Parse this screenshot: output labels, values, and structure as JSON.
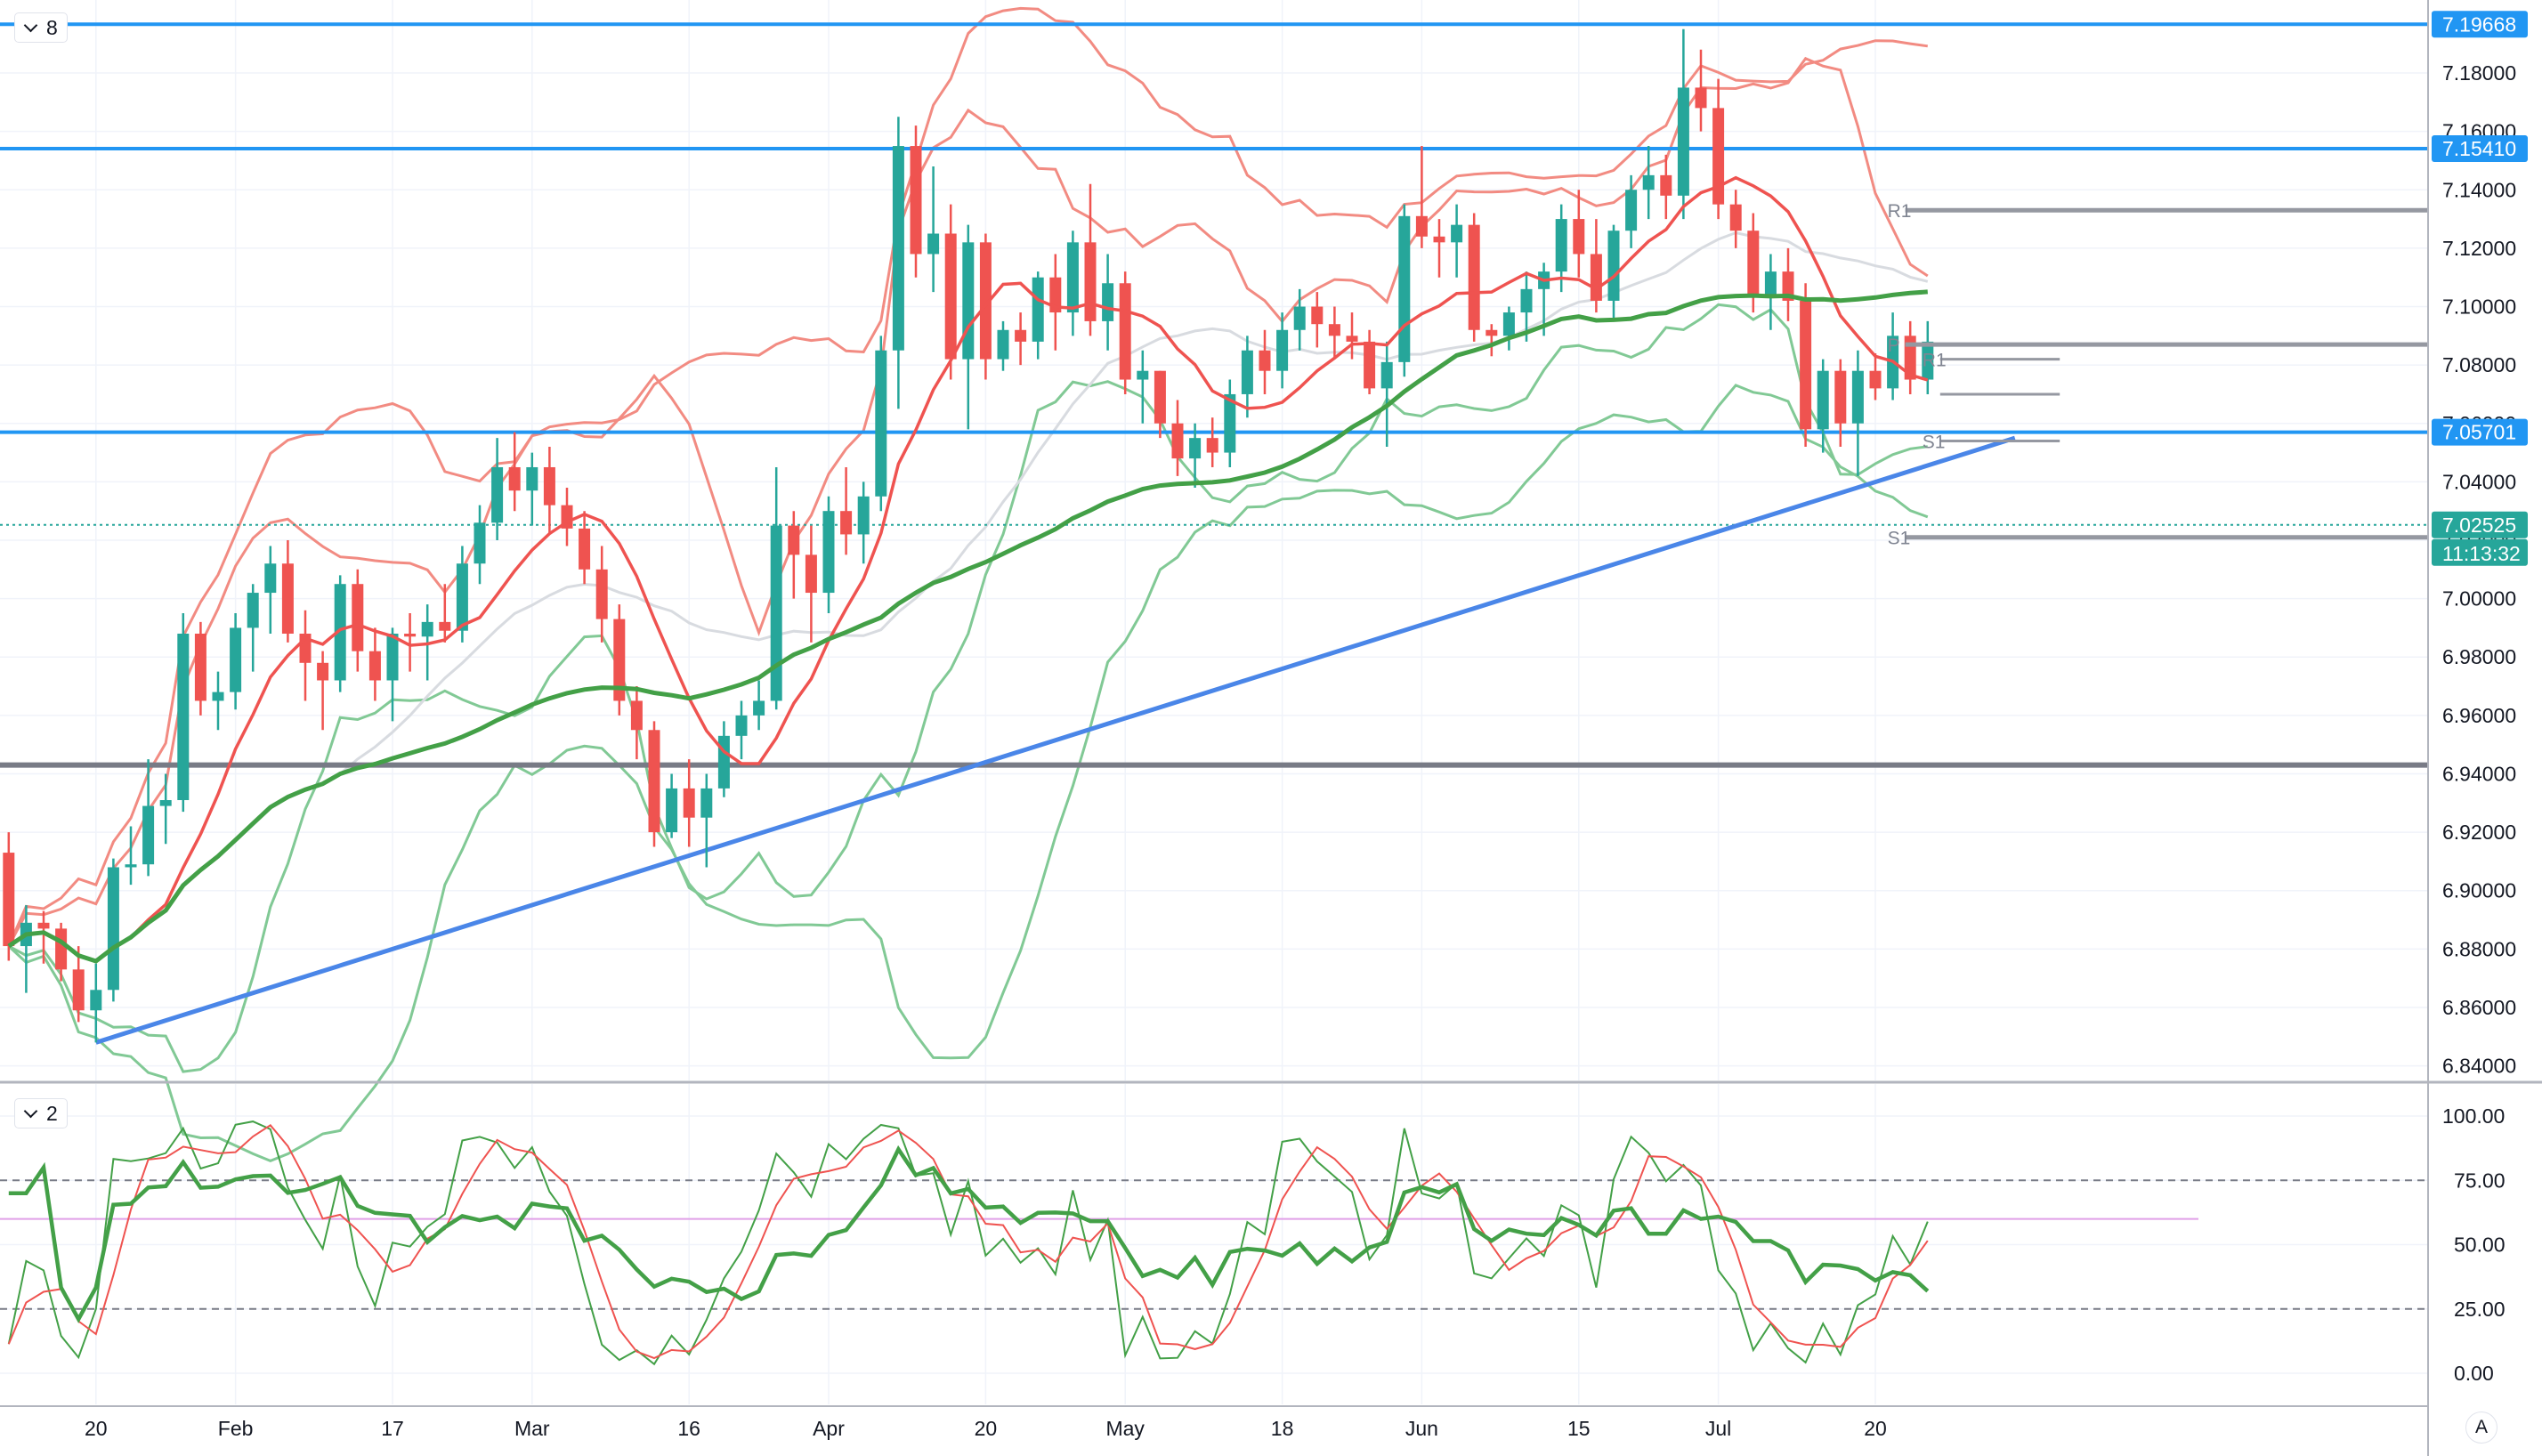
{
  "panes": {
    "main": {
      "indicator_count": "8"
    },
    "oscillator": {
      "indicator_count": "2"
    }
  },
  "auto_scale_label": "A",
  "colors": {
    "up": "#26a69a",
    "down": "#ef5350",
    "level_blue": "#2196f3",
    "trendline": "#4a86e8",
    "support_gray": "#787b86",
    "pivot_gray": "#9598a1",
    "bb_red": "#f28b82",
    "bb_green": "#81c995",
    "ma_red": "#ef5350",
    "ma_green": "#43a047",
    "ma_gray": "#d8dbe0",
    "osc_green": "#43a047",
    "osc_red": "#ef5350",
    "magenta": "#e0a0e8",
    "grid": "#f0f3fa"
  },
  "chart_data": {
    "type": "candlestick",
    "price_axis": {
      "range": [
        6.835,
        7.205
      ],
      "ticks": [
        "7.18000",
        "7.16000",
        "7.14000",
        "7.12000",
        "7.10000",
        "7.08000",
        "7.06000",
        "7.04000",
        "7.02000",
        "7.00000",
        "6.98000",
        "6.96000",
        "6.94000",
        "6.92000",
        "6.90000",
        "6.88000",
        "6.86000",
        "6.84000"
      ],
      "tick_values": [
        7.18,
        7.16,
        7.14,
        7.12,
        7.1,
        7.08,
        7.06,
        7.04,
        7.02,
        7.0,
        6.98,
        6.96,
        6.94,
        6.92,
        6.9,
        6.88,
        6.86,
        6.84
      ]
    },
    "time_axis": {
      "labels": [
        "20",
        "Feb",
        "17",
        "Mar",
        "16",
        "Apr",
        "20",
        "May",
        "18",
        "Jun",
        "15",
        "Jul",
        "20"
      ],
      "label_index": [
        5,
        13,
        22,
        30,
        39,
        47,
        56,
        64,
        73,
        81,
        90,
        98,
        107
      ]
    },
    "horizontal_levels": [
      {
        "price": 7.19668,
        "label": "7.19668",
        "color": "#2196f3",
        "tagged": true
      },
      {
        "price": 7.1541,
        "label": "7.15410",
        "color": "#2196f3",
        "tagged": true
      },
      {
        "price": 7.05701,
        "label": "7.05701",
        "color": "#2196f3",
        "tagged": true
      },
      {
        "price": 6.943,
        "label": "",
        "color": "#787b86",
        "tagged": false
      }
    ],
    "current_price": {
      "price": 7.02525,
      "label": "7.02525",
      "countdown": "11:13:32"
    },
    "trendline": {
      "from": [
        5,
        6.848
      ],
      "to": [
        115,
        7.055
      ]
    },
    "pivot_levels": [
      {
        "label": "R1",
        "price": 7.133,
        "from": 108,
        "to": 122
      },
      {
        "label": "P",
        "price": 7.087,
        "from": 108,
        "to": 122
      },
      {
        "label": "S1",
        "price": 7.021,
        "from": 108,
        "to": 122
      },
      {
        "label": "R1",
        "price": 7.082,
        "from": 110,
        "to": 114
      },
      {
        "label": "",
        "price": 7.07,
        "from": 110,
        "to": 114
      },
      {
        "label": "S1",
        "price": 7.054,
        "from": 110,
        "to": 114
      }
    ],
    "candles": [
      [
        6.913,
        6.92,
        6.876,
        6.881
      ],
      [
        6.881,
        6.895,
        6.865,
        6.889
      ],
      [
        6.889,
        6.893,
        6.875,
        6.887
      ],
      [
        6.887,
        6.889,
        6.869,
        6.873
      ],
      [
        6.873,
        6.881,
        6.855,
        6.859
      ],
      [
        6.859,
        6.875,
        6.848,
        6.866
      ],
      [
        6.866,
        6.911,
        6.862,
        6.908
      ],
      [
        6.908,
        6.922,
        6.902,
        6.909
      ],
      [
        6.909,
        6.945,
        6.905,
        6.929
      ],
      [
        6.929,
        6.94,
        6.916,
        6.931
      ],
      [
        6.931,
        6.995,
        6.927,
        6.988
      ],
      [
        6.988,
        6.992,
        6.96,
        6.965
      ],
      [
        6.965,
        6.975,
        6.955,
        6.968
      ],
      [
        6.968,
        6.995,
        6.962,
        6.99
      ],
      [
        6.99,
        7.005,
        6.975,
        7.002
      ],
      [
        7.002,
        7.018,
        6.988,
        7.012
      ],
      [
        7.012,
        7.02,
        6.985,
        6.988
      ],
      [
        6.988,
        6.996,
        6.965,
        6.978
      ],
      [
        6.978,
        6.982,
        6.955,
        6.972
      ],
      [
        6.972,
        7.008,
        6.968,
        7.005
      ],
      [
        7.005,
        7.01,
        6.975,
        6.982
      ],
      [
        6.982,
        6.99,
        6.965,
        6.972
      ],
      [
        6.972,
        6.99,
        6.958,
        6.988
      ],
      [
        6.988,
        6.995,
        6.975,
        6.987
      ],
      [
        6.987,
        6.998,
        6.972,
        6.992
      ],
      [
        6.992,
        7.005,
        6.985,
        6.989
      ],
      [
        6.989,
        7.018,
        6.985,
        7.012
      ],
      [
        7.012,
        7.032,
        7.005,
        7.026
      ],
      [
        7.026,
        7.055,
        7.02,
        7.045
      ],
      [
        7.045,
        7.057,
        7.03,
        7.037
      ],
      [
        7.037,
        7.05,
        7.025,
        7.045
      ],
      [
        7.045,
        7.052,
        7.022,
        7.032
      ],
      [
        7.032,
        7.038,
        7.018,
        7.024
      ],
      [
        7.024,
        7.03,
        7.005,
        7.01
      ],
      [
        7.01,
        7.018,
        6.985,
        6.993
      ],
      [
        6.993,
        6.998,
        6.96,
        6.965
      ],
      [
        6.965,
        6.97,
        6.945,
        6.955
      ],
      [
        6.955,
        6.958,
        6.915,
        6.92
      ],
      [
        6.92,
        6.94,
        6.918,
        6.935
      ],
      [
        6.935,
        6.945,
        6.915,
        6.925
      ],
      [
        6.925,
        6.94,
        6.908,
        6.935
      ],
      [
        6.935,
        6.958,
        6.932,
        6.953
      ],
      [
        6.953,
        6.965,
        6.945,
        6.96
      ],
      [
        6.96,
        6.972,
        6.955,
        6.965
      ],
      [
        6.965,
        7.045,
        6.962,
        7.025
      ],
      [
        7.025,
        7.03,
        7.0,
        7.015
      ],
      [
        7.015,
        7.025,
        6.985,
        7.002
      ],
      [
        7.002,
        7.035,
        6.995,
        7.03
      ],
      [
        7.03,
        7.045,
        7.015,
        7.022
      ],
      [
        7.022,
        7.04,
        7.012,
        7.035
      ],
      [
        7.035,
        7.09,
        7.03,
        7.085
      ],
      [
        7.085,
        7.165,
        7.065,
        7.155
      ],
      [
        7.155,
        7.162,
        7.11,
        7.118
      ],
      [
        7.118,
        7.148,
        7.105,
        7.125
      ],
      [
        7.125,
        7.135,
        7.075,
        7.082
      ],
      [
        7.082,
        7.128,
        7.058,
        7.122
      ],
      [
        7.122,
        7.125,
        7.075,
        7.082
      ],
      [
        7.082,
        7.095,
        7.078,
        7.092
      ],
      [
        7.092,
        7.098,
        7.08,
        7.088
      ],
      [
        7.088,
        7.112,
        7.082,
        7.11
      ],
      [
        7.11,
        7.118,
        7.085,
        7.098
      ],
      [
        7.098,
        7.126,
        7.09,
        7.122
      ],
      [
        7.122,
        7.142,
        7.09,
        7.095
      ],
      [
        7.095,
        7.118,
        7.085,
        7.108
      ],
      [
        7.108,
        7.112,
        7.07,
        7.075
      ],
      [
        7.075,
        7.085,
        7.06,
        7.078
      ],
      [
        7.078,
        7.078,
        7.055,
        7.06
      ],
      [
        7.06,
        7.068,
        7.042,
        7.048
      ],
      [
        7.048,
        7.06,
        7.038,
        7.055
      ],
      [
        7.055,
        7.062,
        7.045,
        7.05
      ],
      [
        7.05,
        7.075,
        7.045,
        7.07
      ],
      [
        7.07,
        7.09,
        7.062,
        7.085
      ],
      [
        7.085,
        7.092,
        7.07,
        7.078
      ],
      [
        7.078,
        7.098,
        7.072,
        7.092
      ],
      [
        7.092,
        7.106,
        7.085,
        7.1
      ],
      [
        7.1,
        7.105,
        7.086,
        7.094
      ],
      [
        7.094,
        7.1,
        7.082,
        7.09
      ],
      [
        7.09,
        7.098,
        7.082,
        7.088
      ],
      [
        7.088,
        7.092,
        7.07,
        7.072
      ],
      [
        7.072,
        7.088,
        7.052,
        7.081
      ],
      [
        7.081,
        7.135,
        7.076,
        7.131
      ],
      [
        7.131,
        7.155,
        7.12,
        7.124
      ],
      [
        7.124,
        7.13,
        7.11,
        7.122
      ],
      [
        7.122,
        7.135,
        7.11,
        7.128
      ],
      [
        7.128,
        7.132,
        7.088,
        7.092
      ],
      [
        7.092,
        7.094,
        7.083,
        7.09
      ],
      [
        7.09,
        7.1,
        7.085,
        7.098
      ],
      [
        7.098,
        7.112,
        7.088,
        7.106
      ],
      [
        7.106,
        7.115,
        7.09,
        7.112
      ],
      [
        7.112,
        7.135,
        7.105,
        7.13
      ],
      [
        7.13,
        7.14,
        7.11,
        7.118
      ],
      [
        7.118,
        7.13,
        7.098,
        7.102
      ],
      [
        7.102,
        7.128,
        7.095,
        7.126
      ],
      [
        7.126,
        7.145,
        7.12,
        7.14
      ],
      [
        7.14,
        7.155,
        7.13,
        7.145
      ],
      [
        7.145,
        7.152,
        7.13,
        7.138
      ],
      [
        7.138,
        7.195,
        7.13,
        7.175
      ],
      [
        7.175,
        7.188,
        7.16,
        7.168
      ],
      [
        7.168,
        7.178,
        7.13,
        7.135
      ],
      [
        7.135,
        7.14,
        7.12,
        7.126
      ],
      [
        7.126,
        7.132,
        7.098,
        7.104
      ],
      [
        7.104,
        7.118,
        7.092,
        7.112
      ],
      [
        7.112,
        7.12,
        7.095,
        7.102
      ],
      [
        7.102,
        7.108,
        7.052,
        7.058
      ],
      [
        7.058,
        7.082,
        7.05,
        7.078
      ],
      [
        7.078,
        7.082,
        7.052,
        7.06
      ],
      [
        7.06,
        7.085,
        7.042,
        7.078
      ],
      [
        7.078,
        7.084,
        7.068,
        7.072
      ],
      [
        7.072,
        7.098,
        7.068,
        7.09
      ],
      [
        7.09,
        7.095,
        7.07,
        7.075
      ],
      [
        7.075,
        7.095,
        7.07,
        7.088
      ]
    ]
  }
}
